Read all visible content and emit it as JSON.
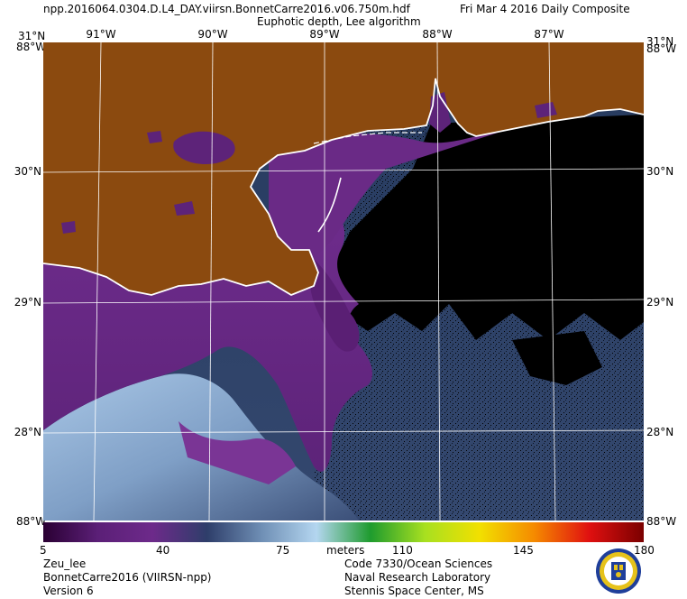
{
  "header": {
    "filename": "npp.2016064.0304.D.L4_DAY.viirsn.BonnetCarre2016.v06.750m.hdf",
    "date": "Fri Mar  4 2016 Daily Composite",
    "subtitle": "Euphotic depth, Lee algorithm"
  },
  "map": {
    "lon_labels": [
      "91°W",
      "90°W",
      "89°W",
      "88°W",
      "87°W"
    ],
    "lat_labels": [
      "31°N",
      "30°N",
      "29°N",
      "28°N"
    ],
    "corner_labels": {
      "top_left_lat": "31°N",
      "top_left_lon": "88°W",
      "top_right_lat": "31°N",
      "top_right_lon": "88°W",
      "bottom_left": "88°W",
      "bottom_right": "88°W"
    },
    "colors": {
      "land": "#8b4a0f",
      "coast": "#ffffff",
      "nodata": "#000000",
      "turbid": "#6a2a86"
    }
  },
  "colorbar": {
    "ticks": [
      "5",
      "40",
      "75",
      "110",
      "145",
      "180"
    ],
    "unit": "meters",
    "stops": [
      "#2a0033",
      "#5b1f77",
      "#6d2a8a",
      "#2e3e6a",
      "#6f8fb5",
      "#b4d6f0",
      "#1e9b2e",
      "#a8e020",
      "#f2e000",
      "#f58a00",
      "#e01010",
      "#7a0000"
    ]
  },
  "footer": {
    "left": [
      "Zeu_lee",
      "BonnetCarre2016 (VIIRSN-npp)",
      "Version 6"
    ],
    "right": [
      "Code 7330/Ocean Sciences",
      "Naval Research Laboratory",
      "Stennis Space Center, MS"
    ]
  }
}
